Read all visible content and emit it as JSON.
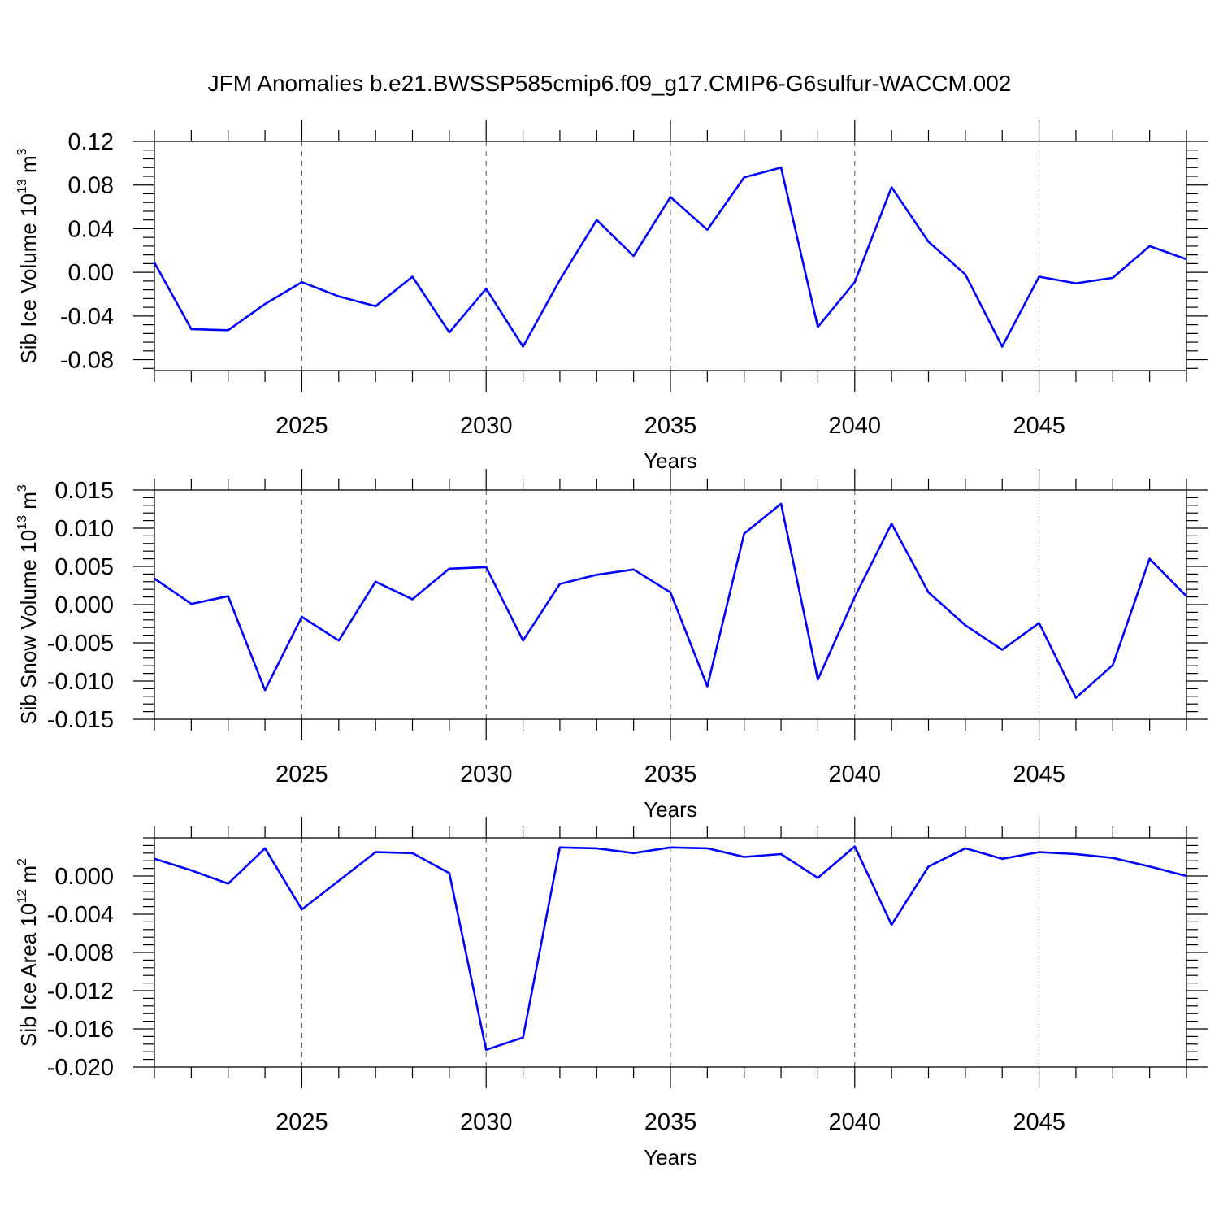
{
  "title": "JFM Anomalies b.e21.BWSSP585cmip6.f09_g17.CMIP6-G6sulfur-WACCM.002",
  "colors": {
    "line": "#0000ff",
    "axis": "#000000",
    "grid": "#555555"
  },
  "chart_data": [
    {
      "type": "line",
      "xlabel": "Years",
      "ylabel": {
        "text": "Sib Ice Volume 10",
        "exp": "13",
        "unit": " m",
        "unit_exp": "3"
      },
      "xlim": [
        2021,
        2049
      ],
      "ylim": [
        -0.09,
        0.12
      ],
      "grid": "dashed vertical at major x ticks",
      "xticks": [
        2025,
        2030,
        2035,
        2040,
        2045
      ],
      "yticks": [
        -0.08,
        -0.04,
        0.0,
        0.04,
        0.08,
        0.12
      ],
      "ytick_labels": [
        "-0.08",
        "-0.04",
        "0.00",
        "0.04",
        "0.08",
        "0.12"
      ],
      "x": [
        2021,
        2022,
        2023,
        2024,
        2025,
        2026,
        2027,
        2028,
        2029,
        2030,
        2031,
        2032,
        2033,
        2034,
        2035,
        2036,
        2037,
        2038,
        2039,
        2040,
        2041,
        2042,
        2043,
        2044,
        2045,
        2046,
        2047,
        2048,
        2049
      ],
      "series": [
        {
          "values": [
            0.009,
            -0.052,
            -0.053,
            -0.029,
            -0.009,
            -0.022,
            -0.031,
            -0.004,
            -0.055,
            -0.015,
            -0.068,
            -0.007,
            0.048,
            0.015,
            0.069,
            0.039,
            0.087,
            0.096,
            -0.05,
            -0.009,
            0.078,
            0.028,
            -0.002,
            -0.068,
            -0.004,
            -0.01,
            -0.005,
            0.024,
            0.012
          ]
        }
      ]
    },
    {
      "type": "line",
      "xlabel": "Years",
      "ylabel": {
        "text": "Sib Snow Volume 10",
        "exp": "13",
        "unit": " m",
        "unit_exp": "3"
      },
      "xlim": [
        2021,
        2049
      ],
      "ylim": [
        -0.015,
        0.015
      ],
      "grid": "dashed vertical at major x ticks",
      "xticks": [
        2025,
        2030,
        2035,
        2040,
        2045
      ],
      "yticks": [
        -0.015,
        -0.01,
        -0.005,
        0.0,
        0.005,
        0.01,
        0.015
      ],
      "ytick_labels": [
        "-0.015",
        "-0.010",
        "-0.005",
        "0.000",
        "0.005",
        "0.010",
        "0.015"
      ],
      "x": [
        2021,
        2022,
        2023,
        2024,
        2025,
        2026,
        2027,
        2028,
        2029,
        2030,
        2031,
        2032,
        2033,
        2034,
        2035,
        2036,
        2037,
        2038,
        2039,
        2040,
        2041,
        2042,
        2043,
        2044,
        2045,
        2046,
        2047,
        2048,
        2049
      ],
      "series": [
        {
          "values": [
            0.0034,
            0.0001,
            0.0011,
            -0.0112,
            -0.0016,
            -0.0047,
            0.003,
            0.0007,
            0.0047,
            0.0049,
            -0.0047,
            0.0027,
            0.0039,
            0.0046,
            0.0016,
            -0.0107,
            0.0093,
            0.0132,
            -0.0098,
            0.001,
            0.0106,
            0.0016,
            -0.0027,
            -0.0059,
            -0.0024,
            -0.0122,
            -0.0079,
            0.006,
            0.0011
          ]
        }
      ]
    },
    {
      "type": "line",
      "xlabel": "Years",
      "ylabel": {
        "text": "Sib Ice Area 10",
        "exp": "12",
        "unit": " m",
        "unit_exp": "2"
      },
      "xlim": [
        2021,
        2049
      ],
      "ylim": [
        -0.02,
        0.004
      ],
      "grid": "dashed vertical at major x ticks",
      "xticks": [
        2025,
        2030,
        2035,
        2040,
        2045
      ],
      "yticks": [
        -0.02,
        -0.016,
        -0.012,
        -0.008,
        -0.004,
        0.0
      ],
      "ytick_labels": [
        "-0.020",
        "-0.016",
        "-0.012",
        "-0.008",
        "-0.004",
        "0.000"
      ],
      "x": [
        2021,
        2022,
        2023,
        2024,
        2025,
        2026,
        2027,
        2028,
        2029,
        2030,
        2031,
        2032,
        2033,
        2034,
        2035,
        2036,
        2037,
        2038,
        2039,
        2040,
        2041,
        2042,
        2043,
        2044,
        2045,
        2046,
        2047,
        2048,
        2049
      ],
      "series": [
        {
          "values": [
            0.0018,
            0.0006,
            -0.0008,
            0.0029,
            -0.0035,
            -0.0005,
            0.0025,
            0.0024,
            0.0003,
            -0.0182,
            -0.0169,
            0.003,
            0.0029,
            0.0024,
            0.003,
            0.0029,
            0.002,
            0.0023,
            -0.0002,
            0.0031,
            -0.0051,
            0.001,
            0.0029,
            0.0018,
            0.0025,
            0.0023,
            0.0019,
            0.001,
            0.0
          ]
        }
      ]
    }
  ]
}
